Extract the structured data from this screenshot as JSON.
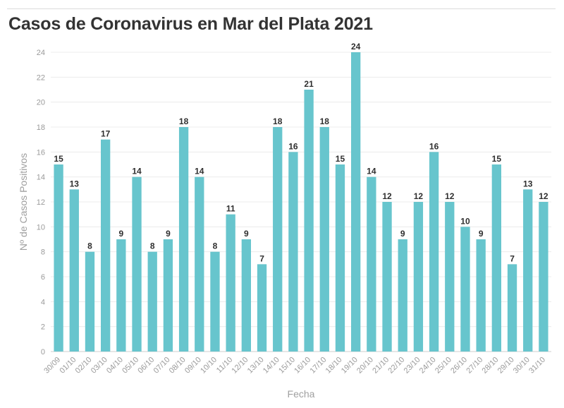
{
  "title": "Casos de Coronavirus en Mar del Plata 2021",
  "colors": {
    "bar": "#67c5cd",
    "grid": "#ececec",
    "axis": "#cfcfcf"
  },
  "chart_data": {
    "type": "bar",
    "title": "Casos de Coronavirus en Mar del Plata 2021",
    "xlabel": "Fecha",
    "ylabel": "Nº de Casos Positivos",
    "ylim": [
      0,
      24
    ],
    "yticks": [
      0,
      2,
      4,
      6,
      8,
      10,
      12,
      14,
      16,
      18,
      20,
      22,
      24
    ],
    "grid": true,
    "categories": [
      "30/09",
      "01/10",
      "02/10",
      "03/10",
      "04/10",
      "05/10",
      "06/10",
      "07/10",
      "08/10",
      "09/10",
      "10/10",
      "11/10",
      "12/10",
      "13/10",
      "14/10",
      "15/10",
      "16/10",
      "17/10",
      "18/10",
      "19/10",
      "20/10",
      "21/10",
      "22/10",
      "23/10",
      "24/10",
      "25/10",
      "26/10",
      "27/10",
      "28/10",
      "29/10",
      "30/10",
      "31/10"
    ],
    "values": [
      15,
      13,
      8,
      17,
      9,
      14,
      8,
      9,
      18,
      14,
      8,
      11,
      9,
      7,
      18,
      16,
      21,
      18,
      15,
      24,
      14,
      12,
      9,
      12,
      16,
      12,
      10,
      9,
      15,
      7,
      13,
      12
    ]
  }
}
